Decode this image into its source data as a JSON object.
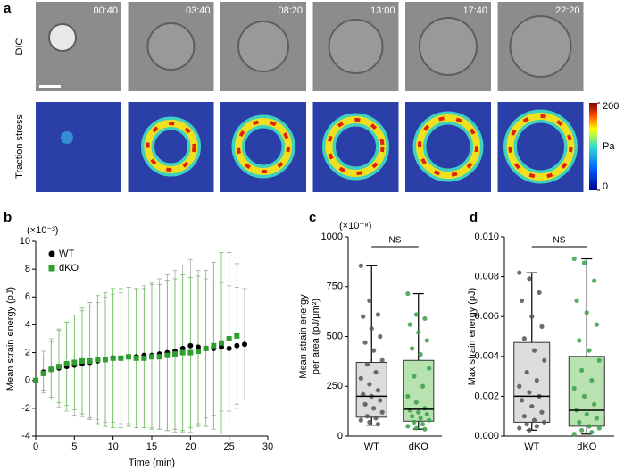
{
  "figure": {
    "panel_labels": [
      "a",
      "b",
      "c",
      "d"
    ],
    "panel_a": {
      "row_labels": [
        "DIC",
        "Traction stress"
      ],
      "timestamps": [
        "00:40",
        "03:40",
        "08:20",
        "13:00",
        "17:40",
        "22:20"
      ],
      "colorbar": {
        "lim": [
          0,
          200
        ],
        "ticks": [
          0,
          200
        ],
        "label": "Pa"
      }
    }
  },
  "chart_data": [
    {
      "type": "errorbar",
      "xlabel": "Time (min)",
      "ylabel": "Mean strain energy (pJ)",
      "y_multiplier": "(×10⁻³)",
      "xlim": [
        0,
        30
      ],
      "xticks": [
        0,
        5,
        10,
        15,
        20,
        25,
        30
      ],
      "ylim": [
        -4,
        10
      ],
      "yticks": [
        -4,
        -2,
        0,
        2,
        4,
        6,
        8,
        10
      ],
      "legend": "upper left",
      "series": [
        {
          "name": "WT",
          "color": "#000000",
          "error_color": "#aaaaaa",
          "x": [
            0,
            1,
            2,
            3,
            4,
            5,
            6,
            7,
            8,
            9,
            10,
            11,
            12,
            13,
            14,
            15,
            16,
            17,
            18,
            19,
            20,
            21,
            22,
            23,
            24,
            25,
            26,
            27
          ],
          "values": [
            0,
            0.6,
            0.8,
            0.9,
            1.0,
            1.1,
            1.2,
            1.3,
            1.4,
            1.5,
            1.6,
            1.6,
            1.7,
            1.7,
            1.8,
            1.8,
            1.9,
            2.0,
            2.1,
            2.3,
            2.5,
            2.4,
            2.3,
            2.3,
            2.4,
            2.3,
            2.5,
            2.6
          ],
          "errors": [
            0,
            1.5,
            2.2,
            2.8,
            3.2,
            3.6,
            3.8,
            4.0,
            4.2,
            4.5,
            4.6,
            4.7,
            4.8,
            4.9,
            5.0,
            5.2,
            5.4,
            5.6,
            5.8,
            6.0,
            6.2,
            5.5,
            5.0,
            4.8,
            4.6,
            4.5,
            4.2,
            4.0
          ]
        },
        {
          "name": "dKO",
          "color": "#2e9e2e",
          "error_color": "#6cc05c",
          "x": [
            0,
            1,
            2,
            3,
            4,
            5,
            6,
            7,
            8,
            9,
            10,
            11,
            12,
            13,
            14,
            15,
            16,
            17,
            18,
            19,
            20,
            21,
            22,
            23,
            24,
            25,
            26
          ],
          "values": [
            0,
            0.5,
            0.8,
            1.0,
            1.2,
            1.3,
            1.4,
            1.4,
            1.5,
            1.5,
            1.6,
            1.6,
            1.7,
            1.6,
            1.6,
            1.7,
            1.7,
            1.8,
            1.9,
            2.0,
            2.0,
            2.1,
            2.3,
            2.5,
            2.7,
            3.0,
            3.2
          ],
          "errors": [
            0,
            1.2,
            2.0,
            2.6,
            3.0,
            3.4,
            3.8,
            4.2,
            4.6,
            4.8,
            5.0,
            5.0,
            5.0,
            5.0,
            5.0,
            5.2,
            5.2,
            5.4,
            5.4,
            5.6,
            5.4,
            5.4,
            5.6,
            6.0,
            6.5,
            6.2,
            5.2
          ]
        }
      ]
    },
    {
      "type": "box",
      "ylabel": [
        "Mean strain energy",
        "per area (pJ/μm²)"
      ],
      "y_multiplier": "(×10⁻⁸)",
      "annotation": "NS",
      "ylim": [
        0,
        1000
      ],
      "yticks": [
        0,
        250,
        500,
        750,
        1000
      ],
      "categories": [
        "WT",
        "dKO"
      ],
      "colors": [
        "#dddddd",
        "#b8e2b0"
      ],
      "point_colors": [
        "#555555",
        "#3aa04a"
      ],
      "boxes": [
        {
          "min": 55,
          "q1": 95,
          "median": 200,
          "q3": 370,
          "max": 855,
          "points": [
            855,
            680,
            610,
            600,
            540,
            500,
            470,
            430,
            380,
            360,
            320,
            290,
            260,
            230,
            210,
            200,
            180,
            160,
            140,
            120,
            100,
            90,
            80,
            70,
            60
          ]
        },
        {
          "min": 35,
          "q1": 75,
          "median": 135,
          "q3": 380,
          "max": 715,
          "points": [
            715,
            610,
            590,
            560,
            520,
            480,
            440,
            410,
            340,
            300,
            250,
            200,
            170,
            140,
            130,
            120,
            110,
            100,
            90,
            80,
            70,
            60,
            50,
            40,
            35
          ]
        }
      ]
    },
    {
      "type": "box",
      "ylabel": [
        "Max strain energy (pJ)"
      ],
      "annotation": "NS",
      "ylim": [
        0,
        0.01
      ],
      "yticks": [
        {
          "value": 0,
          "label": "0.000"
        },
        {
          "value": 0.002,
          "label": "0.002"
        },
        {
          "value": 0.004,
          "label": "0.004"
        },
        {
          "value": 0.006,
          "label": "0.006"
        },
        {
          "value": 0.008,
          "label": "0.008"
        },
        {
          "value": 0.01,
          "label": "0.010"
        }
      ],
      "categories": [
        "WT",
        "dKO"
      ],
      "colors": [
        "#dddddd",
        "#b8e2b0"
      ],
      "point_colors": [
        "#555555",
        "#3aa04a"
      ],
      "boxes": [
        {
          "min": 0.0003,
          "q1": 0.0007,
          "median": 0.002,
          "q3": 0.0047,
          "max": 0.0082,
          "points": [
            0.0082,
            0.0079,
            0.0072,
            0.0068,
            0.006,
            0.0055,
            0.0049,
            0.0043,
            0.0038,
            0.0032,
            0.0028,
            0.0025,
            0.0022,
            0.002,
            0.0018,
            0.0015,
            0.0012,
            0.001,
            0.0008,
            0.0007,
            0.0006,
            0.0005,
            0.0004,
            0.0003
          ]
        },
        {
          "min": 0.0001,
          "q1": 0.0005,
          "median": 0.0013,
          "q3": 0.004,
          "max": 0.0089,
          "points": [
            0.0089,
            0.0087,
            0.0078,
            0.0068,
            0.0062,
            0.0056,
            0.0048,
            0.0043,
            0.0038,
            0.0033,
            0.0028,
            0.0024,
            0.002,
            0.0016,
            0.0013,
            0.0011,
            0.0009,
            0.0007,
            0.0005,
            0.0004,
            0.0003,
            0.0002,
            0.0001
          ]
        }
      ]
    }
  ]
}
